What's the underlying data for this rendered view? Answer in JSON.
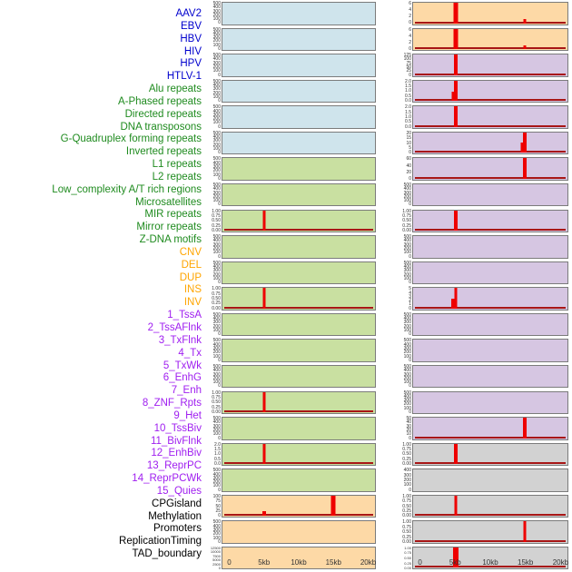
{
  "label_colors": {
    "virus": "#0000cd",
    "repeat": "#1f8b1f",
    "sv": "#ffa500",
    "chromatin": "#a020f0",
    "other": "#000000"
  },
  "category_colors": {
    "virus": "#cfe4ec",
    "repeat": "#c9e0a1",
    "sv": "#fdd9a6",
    "chromatin": "#d6c6e2",
    "other": "#d2d2d2"
  },
  "spike_color": "#ee0000",
  "baseline_color": "#a81616",
  "chart_data": {
    "type": "bar",
    "x_unit": "kb",
    "x_range_kb": [
      0,
      20
    ],
    "x_ticks": [
      "0",
      "5kb",
      "10kb",
      "15kb",
      "20kb"
    ],
    "legend_position": "none",
    "grid": false,
    "ytick_sets": {
      "count500": [
        "500",
        "400",
        "300",
        "200",
        "100",
        "0"
      ],
      "count400": [
        "400",
        "300",
        "200",
        "100",
        "0"
      ],
      "frac1": [
        "1.00",
        "0.75",
        "0.50",
        "0.25",
        "0.00"
      ],
      "frac2": [
        "2.0",
        "1.5",
        "1.0",
        "0.5",
        "0.0"
      ],
      "pct100": [
        "100",
        "75",
        "50",
        "25",
        "0"
      ],
      "count6": [
        "6",
        "4",
        "2",
        "0"
      ],
      "count125": [
        "125",
        "100",
        "75",
        "50",
        "25",
        "0"
      ],
      "count20": [
        "20",
        "15",
        "10",
        "5",
        "0"
      ],
      "count60": [
        "60",
        "40",
        "20",
        "0"
      ],
      "count5": [
        "5",
        "4",
        "3",
        "2",
        "1",
        "0"
      ],
      "count50": [
        "50",
        "40",
        "30",
        "20",
        "10",
        "0"
      ],
      "dup": [
        "12500",
        "10000",
        "7500",
        "5000",
        "2500",
        "0"
      ]
    },
    "tracks": [
      {
        "name": "AAV2",
        "category": "virus",
        "yticks": "count500",
        "ymax": 500,
        "spikes": []
      },
      {
        "name": "EBV",
        "category": "virus",
        "yticks": "count500",
        "ymax": 500,
        "spikes": []
      },
      {
        "name": "HBV",
        "category": "virus",
        "yticks": "count500",
        "ymax": 500,
        "spikes": []
      },
      {
        "name": "HIV",
        "category": "virus",
        "yticks": "count500",
        "ymax": 500,
        "spikes": []
      },
      {
        "name": "HPV",
        "category": "virus",
        "yticks": "count500",
        "ymax": 500,
        "spikes": []
      },
      {
        "name": "HTLV-1",
        "category": "virus",
        "yticks": "count500",
        "ymax": 500,
        "spikes": []
      },
      {
        "name": "Alu repeats",
        "category": "repeat",
        "yticks": "count500",
        "ymax": 500,
        "spikes": []
      },
      {
        "name": "A-Phased repeats",
        "category": "repeat",
        "yticks": "count500",
        "ymax": 500,
        "spikes": []
      },
      {
        "name": "Directed repeats",
        "category": "repeat",
        "yticks": "frac1",
        "ymax": 1,
        "spikes": [
          {
            "x_kb": 5,
            "value": 1,
            "w": 3
          }
        ]
      },
      {
        "name": "DNA transposons",
        "category": "repeat",
        "yticks": "count500",
        "ymax": 500,
        "spikes": []
      },
      {
        "name": "G-Quadruplex forming repeats",
        "category": "repeat",
        "yticks": "count500",
        "ymax": 500,
        "spikes": []
      },
      {
        "name": "Inverted repeats",
        "category": "repeat",
        "yticks": "frac1",
        "ymax": 1,
        "spikes": [
          {
            "x_kb": 5,
            "value": 1,
            "w": 3
          }
        ]
      },
      {
        "name": "L1 repeats",
        "category": "repeat",
        "yticks": "count500",
        "ymax": 500,
        "spikes": []
      },
      {
        "name": "L2 repeats",
        "category": "repeat",
        "yticks": "count500",
        "ymax": 500,
        "spikes": []
      },
      {
        "name": "Low_complexity A/T rich regions",
        "category": "repeat",
        "yticks": "count500",
        "ymax": 500,
        "spikes": []
      },
      {
        "name": "Microsatellites",
        "category": "repeat",
        "yticks": "frac1",
        "ymax": 1,
        "spikes": [
          {
            "x_kb": 5,
            "value": 1,
            "w": 3
          }
        ]
      },
      {
        "name": "MIR repeats",
        "category": "repeat",
        "yticks": "count500",
        "ymax": 500,
        "spikes": []
      },
      {
        "name": "Mirror repeats",
        "category": "repeat",
        "yticks": "frac2",
        "ymax": 2,
        "spikes": [
          {
            "x_kb": 5,
            "value": 2,
            "w": 3
          }
        ]
      },
      {
        "name": "Z-DNA motifs",
        "category": "repeat",
        "yticks": "count500",
        "ymax": 500,
        "spikes": []
      },
      {
        "name": "CNV",
        "category": "sv",
        "yticks": "pct100",
        "ymax": 100,
        "spikes": [
          {
            "x_kb": 5,
            "value": 25,
            "w": 4
          },
          {
            "x_kb": 15,
            "value": 100,
            "w": 5
          }
        ]
      },
      {
        "name": "DEL",
        "category": "sv",
        "yticks": "count500",
        "ymax": 500,
        "spikes": []
      },
      {
        "name": "DUP",
        "category": "sv",
        "yticks": "dup",
        "ymax": 12500,
        "dense": true,
        "spikes": []
      },
      {
        "name": "INS",
        "category": "sv",
        "yticks": "count6",
        "ymax": 6,
        "spikes": [
          {
            "x_kb": 5,
            "value": 6,
            "w": 5
          },
          {
            "x_kb": 15,
            "value": 1.2,
            "w": 3
          }
        ]
      },
      {
        "name": "INV",
        "category": "sv",
        "yticks": "count6",
        "ymax": 6,
        "spikes": [
          {
            "x_kb": 5,
            "value": 6,
            "w": 5
          },
          {
            "x_kb": 15,
            "value": 1.2,
            "w": 3
          }
        ]
      },
      {
        "name": "1_TssA",
        "category": "chromatin",
        "yticks": "count125",
        "ymax": 125,
        "spikes": [
          {
            "x_kb": 5,
            "value": 125,
            "w": 4
          }
        ]
      },
      {
        "name": "2_TssAFlnk",
        "category": "chromatin",
        "yticks": "frac2",
        "ymax": 2,
        "spikes": [
          {
            "x_kb": 4.6,
            "value": 0.9,
            "w": 3
          },
          {
            "x_kb": 5,
            "value": 2,
            "w": 4
          }
        ]
      },
      {
        "name": "3_TxFlnk",
        "category": "chromatin",
        "yticks": "frac2",
        "ymax": 2,
        "spikes": [
          {
            "x_kb": 5,
            "value": 2,
            "w": 4
          }
        ]
      },
      {
        "name": "4_Tx",
        "category": "chromatin",
        "yticks": "count20",
        "ymax": 20,
        "spikes": [
          {
            "x_kb": 14.6,
            "value": 10,
            "w": 3
          },
          {
            "x_kb": 15,
            "value": 20,
            "w": 4
          }
        ]
      },
      {
        "name": "5_TxWk",
        "category": "chromatin",
        "yticks": "count60",
        "ymax": 60,
        "spikes": [
          {
            "x_kb": 15,
            "value": 60,
            "w": 4
          }
        ]
      },
      {
        "name": "6_EnhG",
        "category": "chromatin",
        "yticks": "count500",
        "ymax": 500,
        "spikes": []
      },
      {
        "name": "7_Enh",
        "category": "chromatin",
        "yticks": "frac1",
        "ymax": 1,
        "spikes": [
          {
            "x_kb": 5,
            "value": 1,
            "w": 4
          }
        ]
      },
      {
        "name": "8_ZNF_Rpts",
        "category": "chromatin",
        "yticks": "count500",
        "ymax": 500,
        "spikes": []
      },
      {
        "name": "9_Het",
        "category": "chromatin",
        "yticks": "count500",
        "ymax": 500,
        "spikes": []
      },
      {
        "name": "10_TssBiv",
        "category": "chromatin",
        "yticks": "count5",
        "ymax": 5,
        "spikes": [
          {
            "x_kb": 4.6,
            "value": 2.5,
            "w": 4
          },
          {
            "x_kb": 5,
            "value": 5,
            "w": 3
          }
        ]
      },
      {
        "name": "11_BivFlnk",
        "category": "chromatin",
        "yticks": "count500",
        "ymax": 500,
        "spikes": []
      },
      {
        "name": "12_EnhBiv",
        "category": "chromatin",
        "yticks": "count500",
        "ymax": 500,
        "spikes": []
      },
      {
        "name": "13_ReprPC",
        "category": "chromatin",
        "yticks": "count500",
        "ymax": 500,
        "spikes": []
      },
      {
        "name": "14_ReprPCWk",
        "category": "chromatin",
        "yticks": "count500",
        "ymax": 500,
        "spikes": []
      },
      {
        "name": "15_Quies",
        "category": "chromatin",
        "yticks": "count50",
        "ymax": 50,
        "spikes": [
          {
            "x_kb": 15,
            "value": 50,
            "w": 4
          }
        ]
      },
      {
        "name": "CPGisland",
        "category": "other",
        "yticks": "frac1",
        "ymax": 1,
        "spikes": [
          {
            "x_kb": 5,
            "value": 1,
            "w": 4
          }
        ]
      },
      {
        "name": "Methylation",
        "category": "other",
        "yticks": "count400",
        "ymax": 400,
        "spikes": []
      },
      {
        "name": "Promoters",
        "category": "other",
        "yticks": "frac1",
        "ymax": 1,
        "spikes": [
          {
            "x_kb": 5,
            "value": 1,
            "w": 3
          }
        ]
      },
      {
        "name": "ReplicationTiming",
        "category": "other",
        "yticks": "frac1",
        "ymax": 1,
        "spikes": [
          {
            "x_kb": 15,
            "value": 1,
            "w": 3
          }
        ]
      },
      {
        "name": "TAD_boundary",
        "category": "other",
        "yticks": "frac1",
        "ymax": 1,
        "dense": true,
        "spikes": [
          {
            "x_kb": 5,
            "value": 1,
            "w": 6
          }
        ]
      }
    ]
  }
}
